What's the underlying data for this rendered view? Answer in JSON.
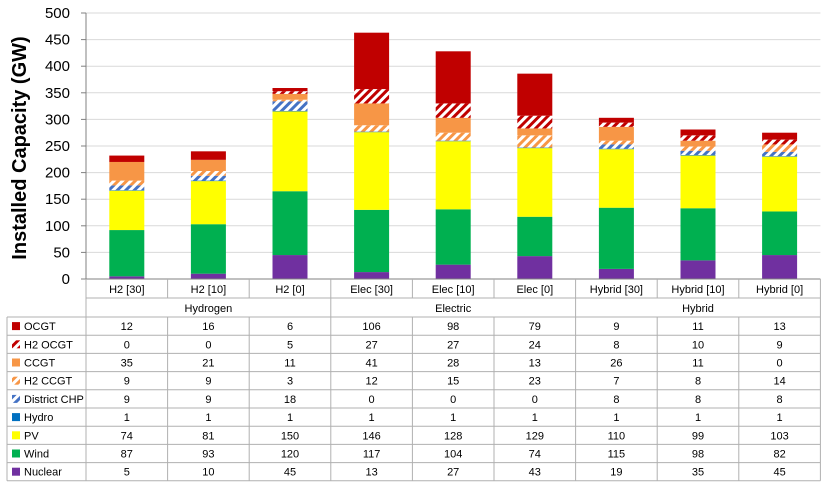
{
  "chart_data": {
    "type": "bar",
    "stacked": true,
    "ylabel": "Installed Capacity (GW)",
    "ylim": [
      0,
      500
    ],
    "yticks": [
      0,
      50,
      100,
      150,
      200,
      250,
      300,
      350,
      400,
      450,
      500
    ],
    "grid": true,
    "categories": [
      "H2 [30]",
      "H2 [10]",
      "H2 [0]",
      "Elec [30]",
      "Elec [10]",
      "Elec [0]",
      "Hybrid [30]",
      "Hybrid [10]",
      "Hybrid [0]"
    ],
    "groups": [
      {
        "name": "Hydrogen",
        "span": 3
      },
      {
        "name": "Electric",
        "span": 3
      },
      {
        "name": "Hybrid",
        "span": 3
      }
    ],
    "series": [
      {
        "name": "OCGT",
        "color": "#c00000",
        "pattern": "solid",
        "values": [
          12,
          16,
          6,
          106,
          98,
          79,
          9,
          11,
          13
        ]
      },
      {
        "name": "H2 OCGT",
        "color": "#c00000",
        "pattern": "hatch",
        "values": [
          0,
          0,
          5,
          27,
          27,
          24,
          8,
          10,
          9
        ]
      },
      {
        "name": "CCGT",
        "color": "#f79646",
        "pattern": "solid",
        "values": [
          35,
          21,
          11,
          41,
          28,
          13,
          26,
          11,
          0
        ]
      },
      {
        "name": "H2 CCGT",
        "color": "#f79646",
        "pattern": "hatch",
        "values": [
          9,
          9,
          3,
          12,
          15,
          23,
          7,
          8,
          14
        ]
      },
      {
        "name": "District CHP",
        "color": "#4472c4",
        "pattern": "hatch",
        "values": [
          9,
          9,
          18,
          0,
          0,
          0,
          8,
          8,
          8
        ]
      },
      {
        "name": "Hydro",
        "color": "#0070c0",
        "pattern": "solid",
        "values": [
          1,
          1,
          1,
          1,
          1,
          1,
          1,
          1,
          1
        ]
      },
      {
        "name": "PV",
        "color": "#ffff00",
        "pattern": "solid",
        "values": [
          74,
          81,
          150,
          146,
          128,
          129,
          110,
          99,
          103
        ]
      },
      {
        "name": "Wind",
        "color": "#00b050",
        "pattern": "solid",
        "values": [
          87,
          93,
          120,
          117,
          104,
          74,
          115,
          98,
          82
        ]
      },
      {
        "name": "Nuclear",
        "color": "#7030a0",
        "pattern": "solid",
        "values": [
          5,
          10,
          45,
          13,
          27,
          43,
          19,
          35,
          45
        ]
      }
    ]
  }
}
